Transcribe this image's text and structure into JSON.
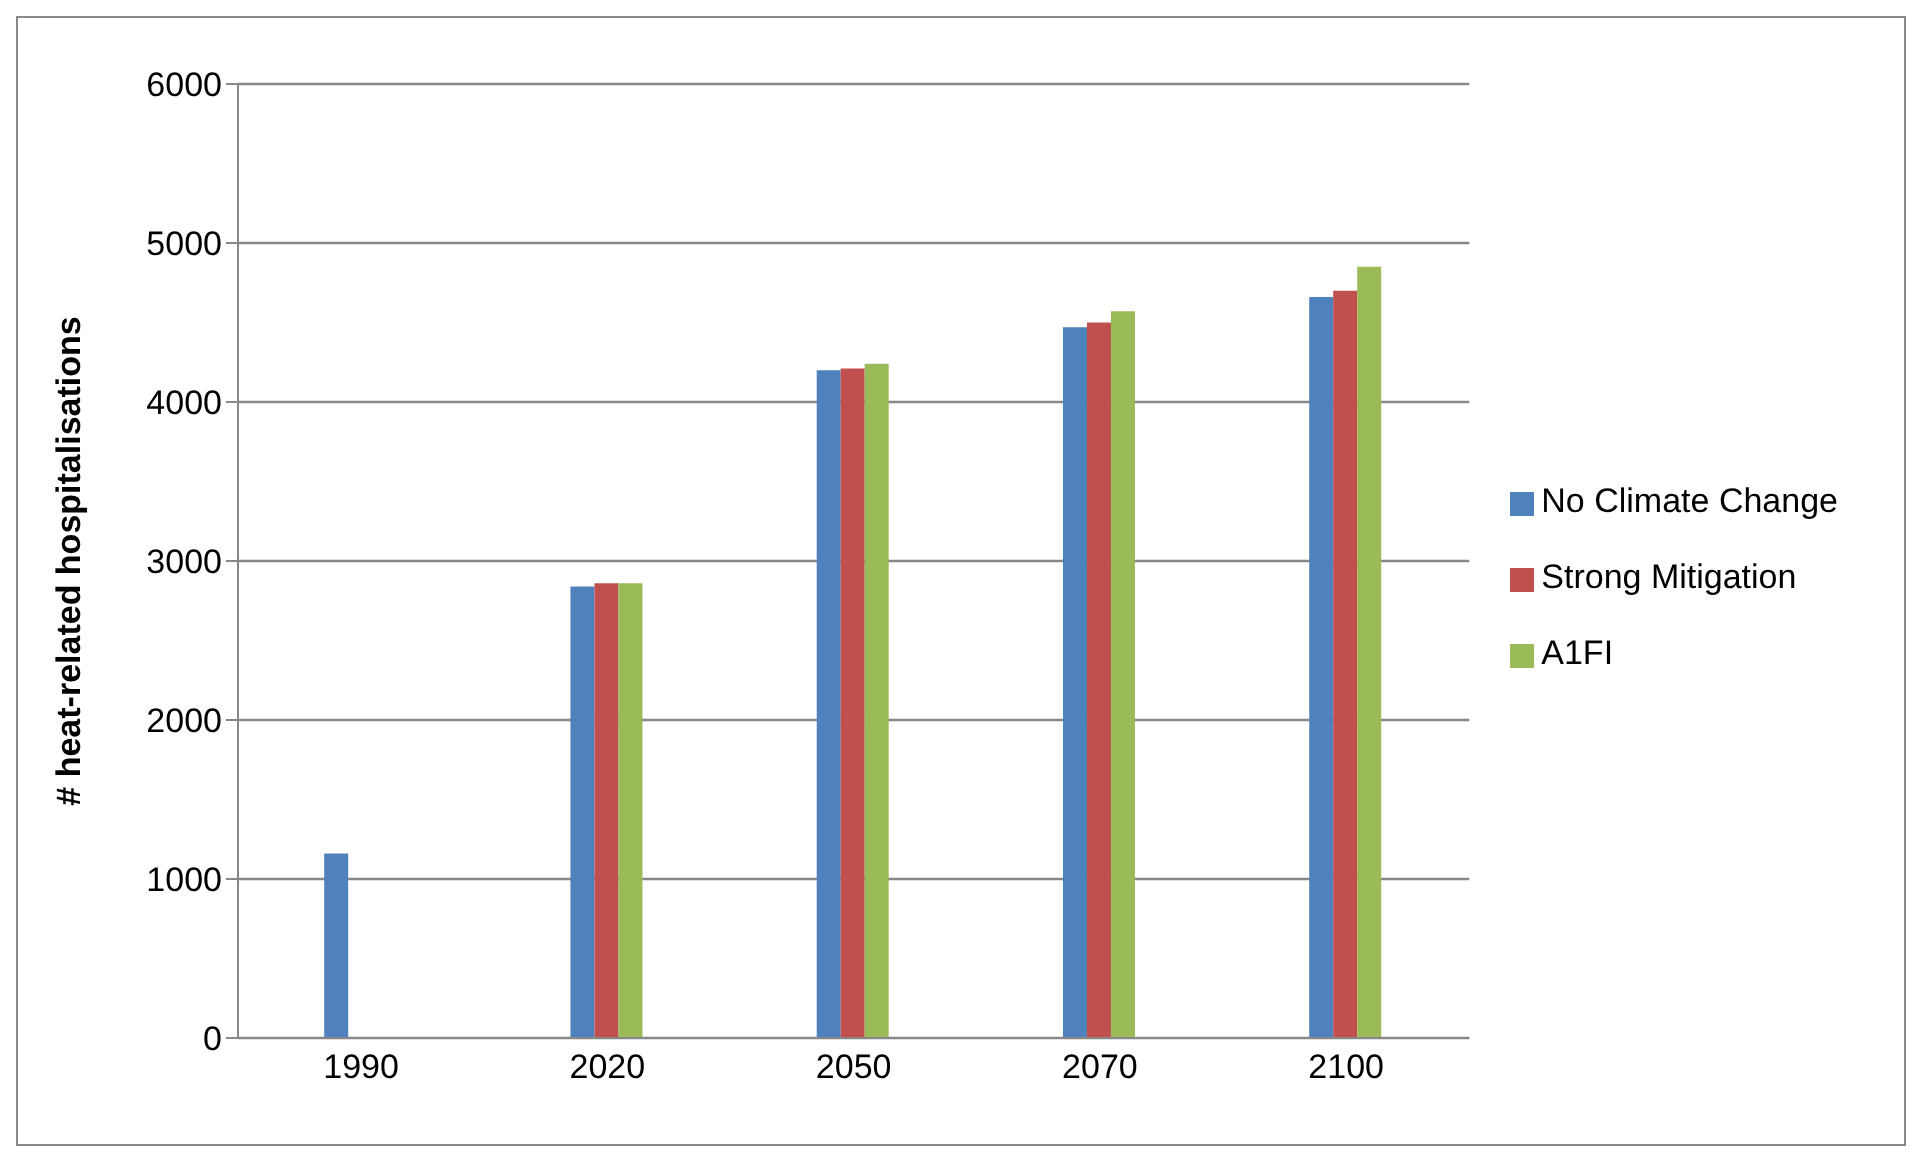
{
  "chart_data": {
    "type": "bar",
    "ylabel": "# heat-related hospitalisations",
    "categories": [
      "1990",
      "2020",
      "2050",
      "2070",
      "2100"
    ],
    "series": [
      {
        "name": "No Climate Change",
        "color": "#4f81bd",
        "values": [
          1160,
          2840,
          4200,
          4470,
          4660
        ]
      },
      {
        "name": "Strong Mitigation",
        "color": "#c0504d",
        "values": [
          null,
          2860,
          4210,
          4500,
          4700
        ]
      },
      {
        "name": "A1FI",
        "color": "#9bbb59",
        "values": [
          null,
          2860,
          4240,
          4570,
          4850
        ]
      }
    ],
    "ylim": [
      0,
      6000
    ],
    "yticks": [
      0,
      1000,
      2000,
      3000,
      4000,
      5000,
      6000
    ],
    "grid": "y",
    "legend": "right"
  }
}
